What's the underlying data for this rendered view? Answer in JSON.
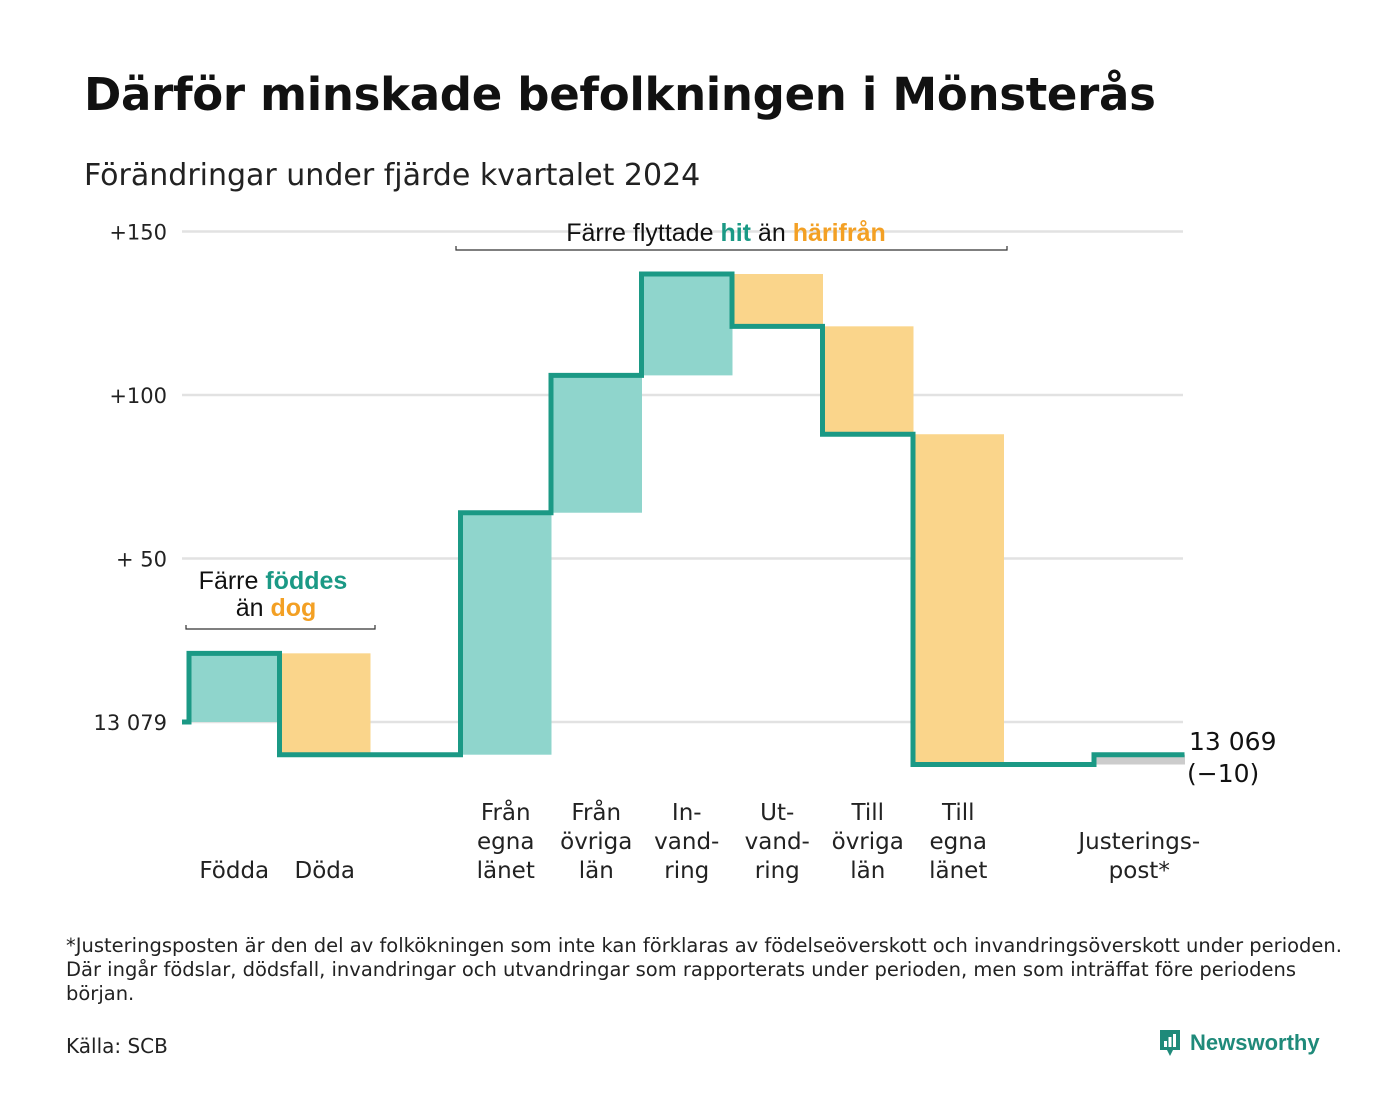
{
  "title": "Därför minskade befolkningen i Mönsterås",
  "subtitle": "Förändringar under fjärde kvartalet 2024",
  "footnote": "*Justeringsposten är den del av folkökningen som inte kan förklaras av födelseöverskott och invandringsöverskott under perioden. Där ingår födslar, dödsfall, invandringar och utvandringar som rapporterats under perioden, men som inträffat före periodens början.",
  "source": "Källa: SCB",
  "brand": "Newsworthy",
  "colors": {
    "increase": "#8fd5cc",
    "decrease": "#fad58b",
    "adjustment": "#cccccc",
    "line": "#1b9985",
    "hit": "#1b9985",
    "away": "#f3a024",
    "grid": "#e2e2e2"
  },
  "annotations": {
    "births": {
      "part1": "Färre ",
      "hl1": "föddes",
      "part2": "än ",
      "hl2": "dog"
    },
    "migration": {
      "part1": "Färre flyttade ",
      "hl1": "hit",
      "part2": " än ",
      "hl2": "härifrån"
    }
  },
  "chart_data": {
    "type": "waterfall",
    "start_value": 13079,
    "start_label": "13 079",
    "end_value": 13069,
    "end_label": "13 069",
    "end_change_label": "(−10)",
    "y_ticks": [
      {
        "offset": 0,
        "label": "13 079"
      },
      {
        "offset": 50,
        "label": "+ 50"
      },
      {
        "offset": 100,
        "label": "+100"
      },
      {
        "offset": 150,
        "label": "+150"
      }
    ],
    "ylim_offset": [
      -13,
      150
    ],
    "steps": [
      {
        "label": [
          "Födda"
        ],
        "change": 21,
        "kind": "increase"
      },
      {
        "label": [
          "Döda"
        ],
        "change": -31,
        "kind": "decrease"
      },
      {
        "label": [],
        "change": 0,
        "kind": "gap"
      },
      {
        "label": [
          "Från",
          "egna",
          "länet"
        ],
        "change": 74,
        "kind": "increase"
      },
      {
        "label": [
          "Från",
          "övriga",
          "län"
        ],
        "change": 42,
        "kind": "increase"
      },
      {
        "label": [
          "In-",
          "vand-",
          "ring"
        ],
        "change": 31,
        "kind": "increase"
      },
      {
        "label": [
          "Ut-",
          "vand-",
          "ring"
        ],
        "change": -16,
        "kind": "decrease"
      },
      {
        "label": [
          "Till",
          "övriga",
          "län"
        ],
        "change": -33,
        "kind": "decrease"
      },
      {
        "label": [
          "Till",
          "egna",
          "länet"
        ],
        "change": -101,
        "kind": "decrease"
      },
      {
        "label": [],
        "change": 0,
        "kind": "gap"
      },
      {
        "label": [
          "Justerings-",
          "post*"
        ],
        "change": 3,
        "kind": "adjustment"
      }
    ]
  }
}
